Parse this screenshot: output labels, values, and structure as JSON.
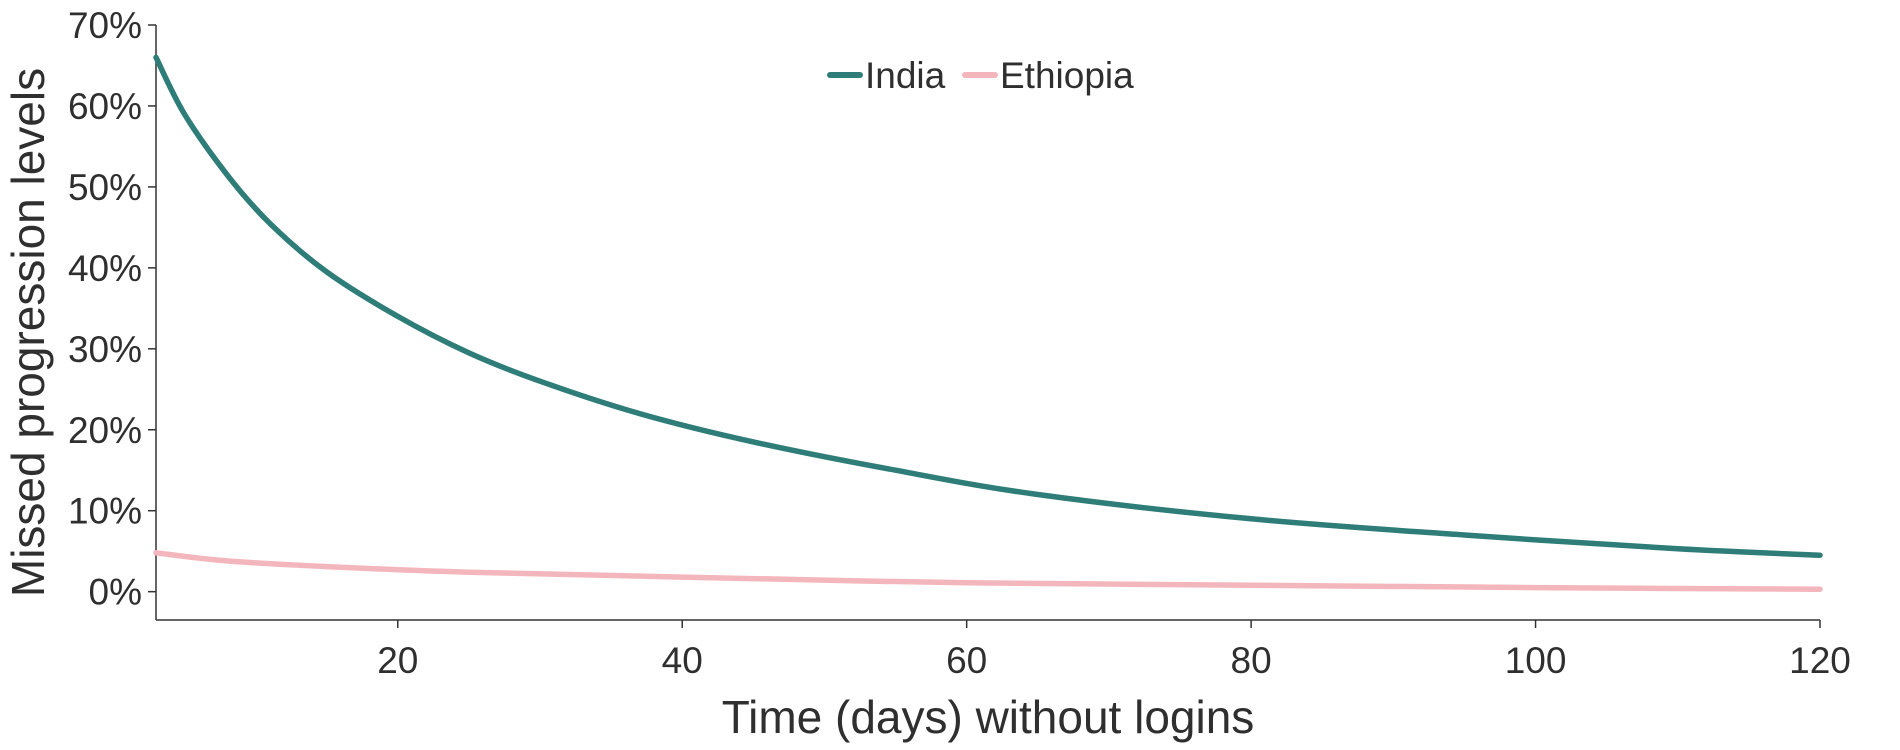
{
  "chart_data": {
    "type": "line",
    "title": "",
    "xlabel": "Time (days) without logins",
    "ylabel": "Missed progression levels",
    "xlim": [
      3,
      120
    ],
    "ylim": [
      -3.5,
      70
    ],
    "x_ticks": [
      20,
      40,
      60,
      80,
      100,
      120
    ],
    "x_tick_labels": [
      "20",
      "40",
      "60",
      "80",
      "100",
      "120"
    ],
    "y_ticks": [
      0,
      10,
      20,
      30,
      40,
      50,
      60,
      70
    ],
    "y_tick_labels": [
      "0%",
      "10%",
      "20%",
      "30%",
      "40%",
      "50%",
      "60%",
      "70%"
    ],
    "grid": false,
    "legend_position": "top-center",
    "series": [
      {
        "name": "India",
        "color": "#2e7d78",
        "x": [
          3,
          5,
          8,
          11,
          15,
          20,
          25,
          30,
          37,
          45,
          55,
          65,
          80,
          95,
          110,
          120
        ],
        "y": [
          66,
          59,
          51.5,
          45.5,
          39.5,
          34,
          29.5,
          26,
          22,
          18.5,
          15,
          12,
          9,
          7,
          5.3,
          4.5
        ]
      },
      {
        "name": "Ethiopia",
        "color": "#f4b6bd",
        "x": [
          3,
          8,
          15,
          25,
          40,
          60,
          80,
          100,
          120
        ],
        "y": [
          4.8,
          3.8,
          3.1,
          2.4,
          1.8,
          1.1,
          0.8,
          0.5,
          0.3
        ]
      }
    ]
  }
}
